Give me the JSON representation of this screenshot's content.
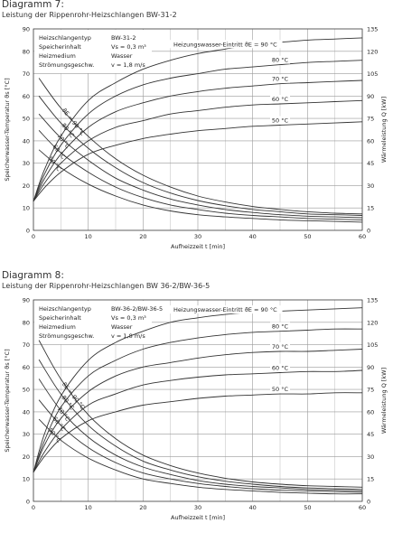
{
  "chart_data": [
    {
      "type": "line",
      "title": "Diagramm 7:",
      "subtitle": "Leistung der Rippenrohr-Heizschlangen BW-31-2",
      "xlabel": "Aufheizzeit t [min]",
      "ylabel": "Speicherwasser-Temperatur ϑs [°C]",
      "y2label": "Wärmeleistung Q [kW]",
      "xlim": [
        0,
        60
      ],
      "ylim": [
        0,
        90
      ],
      "y2lim": [
        0,
        135
      ],
      "xticks": [
        0,
        10,
        20,
        30,
        40,
        50,
        60
      ],
      "yticks": [
        0,
        10,
        20,
        30,
        40,
        50,
        60,
        70,
        80,
        90
      ],
      "y2ticks": [
        0,
        15,
        30,
        45,
        60,
        75,
        90,
        105,
        120,
        135
      ],
      "grid": true,
      "info_labels": [
        "Heizschlangentyp",
        "Speicherinhalt",
        "Heizmedium",
        "Strömungsgeschw."
      ],
      "info_values": [
        "BW-31-2",
        "Vs = 0,3 m³",
        "Wasser",
        "v = 1,8 m/s"
      ],
      "series": [
        {
          "name": "Heizungswasser-Eintritt ϑE = 90 °C",
          "axis": "left",
          "x": [
            0,
            2,
            5,
            10,
            15,
            20,
            25,
            30,
            35,
            40,
            45,
            50,
            55,
            60
          ],
          "y": [
            13,
            27,
            42,
            58,
            66,
            72,
            76,
            79,
            81,
            83,
            84,
            85,
            85.5,
            86
          ]
        },
        {
          "name": "80 °C",
          "axis": "left",
          "x": [
            0,
            2,
            5,
            10,
            15,
            20,
            25,
            30,
            35,
            40,
            45,
            50,
            55,
            60
          ],
          "y": [
            13,
            25,
            38,
            52,
            60,
            65,
            68,
            70,
            72,
            73,
            74,
            75,
            75.5,
            76
          ]
        },
        {
          "name": "70 °C",
          "axis": "left",
          "x": [
            0,
            2,
            5,
            10,
            15,
            20,
            25,
            30,
            35,
            40,
            45,
            50,
            55,
            60
          ],
          "y": [
            13,
            23,
            34,
            46,
            53,
            57,
            60,
            62,
            63.5,
            64.5,
            65.5,
            66,
            66.5,
            67
          ]
        },
        {
          "name": "60 °C",
          "axis": "left",
          "x": [
            0,
            2,
            5,
            10,
            15,
            20,
            25,
            30,
            35,
            40,
            45,
            50,
            55,
            60
          ],
          "y": [
            13,
            21,
            30,
            40,
            46,
            49,
            52,
            53.5,
            55,
            56,
            56.5,
            57,
            57.5,
            58
          ]
        },
        {
          "name": "50 °C",
          "axis": "left",
          "x": [
            0,
            2,
            5,
            10,
            15,
            20,
            25,
            30,
            35,
            40,
            45,
            50,
            55,
            60
          ],
          "y": [
            13,
            19,
            26,
            34,
            38,
            41,
            43,
            44.5,
            45.5,
            46.5,
            47,
            47.5,
            48,
            48.5
          ]
        },
        {
          "name": "ϑE = 90 °C",
          "axis": "right",
          "x": [
            1,
            5,
            10,
            15,
            20,
            25,
            30,
            35,
            40,
            45,
            50,
            55,
            60
          ],
          "y": [
            102,
            82,
            63,
            48,
            37,
            29,
            23,
            19,
            16,
            14,
            12.5,
            11.5,
            11
          ]
        },
        {
          "name": "80 °C",
          "axis": "right",
          "x": [
            1,
            5,
            10,
            15,
            20,
            25,
            30,
            35,
            40,
            45,
            50,
            55,
            60
          ],
          "y": [
            90,
            72,
            55,
            42,
            32,
            25,
            20,
            16.5,
            14,
            12.5,
            11,
            10.5,
            10
          ]
        },
        {
          "name": "70 °C",
          "axis": "right",
          "x": [
            1,
            5,
            10,
            15,
            20,
            25,
            30,
            35,
            40,
            45,
            50,
            55,
            60
          ],
          "y": [
            78,
            62,
            47,
            35,
            27,
            21,
            17,
            14,
            12,
            10.5,
            9.5,
            9,
            8.5
          ]
        },
        {
          "name": "60 °C",
          "axis": "right",
          "x": [
            1,
            5,
            10,
            15,
            20,
            25,
            30,
            35,
            40,
            45,
            50,
            55,
            60
          ],
          "y": [
            67,
            52,
            39,
            29,
            22,
            17,
            14,
            11.5,
            10,
            9,
            8,
            7.5,
            7
          ]
        },
        {
          "name": "50 °C",
          "axis": "right",
          "x": [
            1,
            5,
            10,
            15,
            20,
            25,
            30,
            35,
            40,
            45,
            50,
            55,
            60
          ],
          "y": [
            54,
            42,
            31,
            23,
            17,
            13,
            10.5,
            9,
            8,
            7,
            6.5,
            6,
            5.5
          ]
        }
      ]
    },
    {
      "type": "line",
      "title": "Diagramm 8:",
      "subtitle": "Leistung der Rippenrohr-Heizschlangen BW 36-2/BW-36-5",
      "xlabel": "Aufheizzeit t [min]",
      "ylabel": "Speicherwasser-Temperatur ϑs [°C]",
      "y2label": "Wärmeleistung Q [kW]",
      "xlim": [
        0,
        60
      ],
      "ylim": [
        0,
        90
      ],
      "y2lim": [
        0,
        135
      ],
      "xticks": [
        0,
        10,
        20,
        30,
        40,
        50,
        60
      ],
      "yticks": [
        0,
        10,
        20,
        30,
        40,
        50,
        60,
        70,
        80,
        90
      ],
      "y2ticks": [
        0,
        15,
        30,
        45,
        60,
        75,
        90,
        105,
        120,
        135
      ],
      "grid": true,
      "info_labels": [
        "Heizschlangentyp",
        "Speicherinhalt",
        "Heizmedium",
        "Strömungsgeschw."
      ],
      "info_values": [
        "BW-36-2/BW-36-5",
        "Vs = 0,3 m³",
        "Wasser",
        "v = 1,8 m/s"
      ],
      "series": [
        {
          "name": "Heizungswasser-Eintritt ϑE = 90 °C",
          "axis": "left",
          "x": [
            0,
            2,
            5,
            10,
            15,
            20,
            25,
            30,
            35,
            40,
            45,
            50,
            55,
            60
          ],
          "y": [
            13,
            30,
            47,
            63,
            71,
            76,
            80,
            82,
            83.5,
            84.5,
            85,
            85.5,
            86,
            86.5
          ]
        },
        {
          "name": "80 °C",
          "axis": "left",
          "x": [
            0,
            2,
            5,
            10,
            15,
            20,
            25,
            30,
            35,
            40,
            45,
            50,
            55,
            60
          ],
          "y": [
            13,
            27,
            42,
            56,
            63,
            68,
            71,
            73,
            74.5,
            75.5,
            76,
            76.5,
            77,
            77
          ]
        },
        {
          "name": "70 °C",
          "axis": "left",
          "x": [
            0,
            2,
            5,
            10,
            15,
            20,
            25,
            30,
            35,
            40,
            45,
            50,
            55,
            60
          ],
          "y": [
            13,
            25,
            37,
            49,
            56,
            60,
            62,
            64,
            65.5,
            66.5,
            67,
            67,
            67.5,
            68
          ]
        },
        {
          "name": "60 °C",
          "axis": "left",
          "x": [
            0,
            2,
            5,
            10,
            15,
            20,
            25,
            30,
            35,
            40,
            45,
            50,
            55,
            60
          ],
          "y": [
            13,
            22,
            32,
            43,
            48,
            52,
            54,
            55.5,
            56.5,
            57,
            57.5,
            58,
            58,
            58.5
          ]
        },
        {
          "name": "50 °C",
          "axis": "left",
          "x": [
            0,
            2,
            5,
            10,
            15,
            20,
            25,
            30,
            35,
            40,
            45,
            50,
            55,
            60
          ],
          "y": [
            13,
            20,
            28,
            36,
            40,
            43,
            44.5,
            46,
            47,
            47.5,
            48,
            48,
            48.5,
            48.5
          ]
        },
        {
          "name": "ϑE = 90 °C",
          "axis": "right",
          "x": [
            1,
            5,
            10,
            15,
            20,
            25,
            30,
            35,
            40,
            45,
            50,
            55,
            60
          ],
          "y": [
            108,
            82,
            58,
            42,
            31,
            24,
            19,
            15.5,
            13,
            11.5,
            10.5,
            10,
            9.5
          ]
        },
        {
          "name": "80 °C",
          "axis": "right",
          "x": [
            1,
            5,
            10,
            15,
            20,
            25,
            30,
            35,
            40,
            45,
            50,
            55,
            60
          ],
          "y": [
            95,
            72,
            51,
            37,
            27,
            21,
            16.5,
            13.5,
            11.5,
            10,
            9,
            8.5,
            8
          ]
        },
        {
          "name": "70 °C",
          "axis": "right",
          "x": [
            1,
            5,
            10,
            15,
            20,
            25,
            30,
            35,
            40,
            45,
            50,
            55,
            60
          ],
          "y": [
            82,
            61,
            43,
            31,
            23,
            18,
            14,
            11.5,
            10,
            9,
            8,
            7.5,
            7
          ]
        },
        {
          "name": "60 °C",
          "axis": "right",
          "x": [
            1,
            5,
            10,
            15,
            20,
            25,
            30,
            35,
            40,
            45,
            50,
            55,
            60
          ],
          "y": [
            68,
            51,
            36,
            26,
            19,
            15,
            12,
            10,
            8.5,
            7.5,
            7,
            6.5,
            6
          ]
        },
        {
          "name": "50 °C",
          "axis": "right",
          "x": [
            1,
            5,
            10,
            15,
            20,
            25,
            30,
            35,
            40,
            45,
            50,
            55,
            60
          ],
          "y": [
            55,
            41,
            29,
            21,
            15,
            12,
            9.5,
            8,
            7,
            6,
            5.5,
            5,
            5
          ]
        }
      ]
    }
  ]
}
